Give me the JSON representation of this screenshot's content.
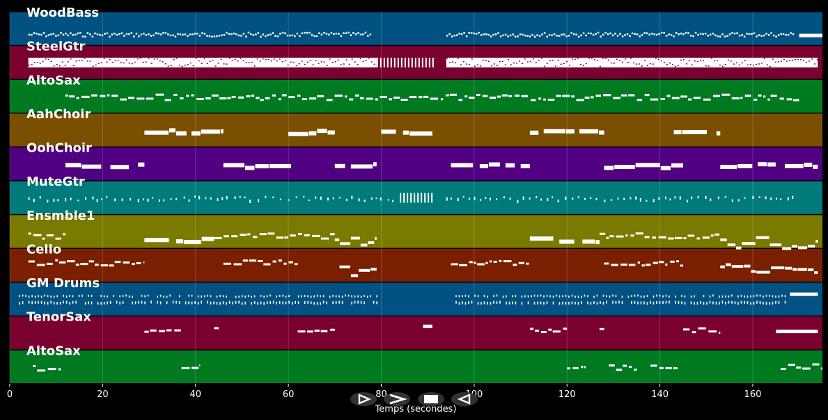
{
  "chart_data": {
    "type": "piano-roll",
    "xlabel": "Temps (secondes)",
    "xlim": [
      0,
      175
    ],
    "xticks": [
      0,
      20,
      40,
      60,
      80,
      100,
      120,
      140,
      160
    ],
    "grid": true,
    "tracks": [
      {
        "name": "WoodBass",
        "color": "#015182",
        "notes": [
          {
            "start": 4,
            "end": 78,
            "pattern": "dense-dots",
            "level": 0.35
          },
          {
            "start": 94,
            "end": 169,
            "pattern": "dense-dots",
            "level": 0.35
          },
          {
            "start": 170,
            "end": 175,
            "pattern": "bar",
            "level": 0.3
          }
        ]
      },
      {
        "name": "SteelGtr",
        "color": "#7a0030",
        "notes": [
          {
            "start": 4,
            "end": 79,
            "pattern": "thick-block",
            "level": 0.5
          },
          {
            "start": 79,
            "end": 91,
            "pattern": "vertical-stripes",
            "level": 0.5
          },
          {
            "start": 94,
            "end": 174,
            "pattern": "thick-block",
            "level": 0.5
          }
        ]
      },
      {
        "name": "AltoSax",
        "color": "#007a20",
        "notes": [
          {
            "start": 12,
            "end": 170,
            "pattern": "line-notes",
            "level": 0.5
          }
        ]
      },
      {
        "name": "AahChoir",
        "color": "#7a5000",
        "notes": [
          {
            "start": 29,
            "end": 46,
            "pattern": "blocks",
            "level": 0.5
          },
          {
            "start": 60,
            "end": 70,
            "pattern": "blocks",
            "level": 0.5
          },
          {
            "start": 80,
            "end": 91,
            "pattern": "blocks",
            "level": 0.5
          },
          {
            "start": 112,
            "end": 128,
            "pattern": "blocks",
            "level": 0.5
          },
          {
            "start": 143,
            "end": 153,
            "pattern": "blocks",
            "level": 0.5
          }
        ]
      },
      {
        "name": "OohChoir",
        "color": "#500080",
        "notes": [
          {
            "start": 12,
            "end": 29,
            "pattern": "blocks",
            "level": 0.5
          },
          {
            "start": 46,
            "end": 62,
            "pattern": "blocks",
            "level": 0.5
          },
          {
            "start": 70,
            "end": 79,
            "pattern": "blocks",
            "level": 0.5
          },
          {
            "start": 95,
            "end": 112,
            "pattern": "blocks",
            "level": 0.5
          },
          {
            "start": 128,
            "end": 145,
            "pattern": "blocks",
            "level": 0.5
          },
          {
            "start": 153,
            "end": 174,
            "pattern": "blocks",
            "level": 0.5
          }
        ]
      },
      {
        "name": "MuteGtr",
        "color": "#007a7a",
        "notes": [
          {
            "start": 4,
            "end": 84,
            "pattern": "sparse-dots",
            "level": 0.5
          },
          {
            "start": 84,
            "end": 91,
            "pattern": "vertical-stripes",
            "level": 0.5
          },
          {
            "start": 94,
            "end": 169,
            "pattern": "sparse-dots",
            "level": 0.5
          }
        ]
      },
      {
        "name": "Ensmble1",
        "color": "#7a7a00",
        "notes": [
          {
            "start": 4,
            "end": 12,
            "pattern": "line-notes",
            "level": 0.4
          },
          {
            "start": 29,
            "end": 44,
            "pattern": "blocks",
            "level": 0.3
          },
          {
            "start": 44,
            "end": 70,
            "pattern": "line-notes",
            "level": 0.4
          },
          {
            "start": 70,
            "end": 79,
            "pattern": "blocks-steps",
            "level": 0.3
          },
          {
            "start": 112,
            "end": 127,
            "pattern": "blocks",
            "level": 0.3
          },
          {
            "start": 127,
            "end": 153,
            "pattern": "line-notes",
            "level": 0.4
          },
          {
            "start": 153,
            "end": 174,
            "pattern": "blocks-steps",
            "level": 0.3
          }
        ]
      },
      {
        "name": "Cello",
        "color": "#7a2000",
        "notes": [
          {
            "start": 4,
            "end": 29,
            "pattern": "line-notes",
            "level": 0.6
          },
          {
            "start": 46,
            "end": 62,
            "pattern": "line-notes",
            "level": 0.6
          },
          {
            "start": 71,
            "end": 79,
            "pattern": "blocks-steps",
            "level": 0.5
          },
          {
            "start": 95,
            "end": 112,
            "pattern": "line-notes",
            "level": 0.6
          },
          {
            "start": 128,
            "end": 145,
            "pattern": "line-notes",
            "level": 0.6
          },
          {
            "start": 153,
            "end": 174,
            "pattern": "blocks-steps",
            "level": 0.5
          }
        ]
      },
      {
        "name": "GM Drums",
        "color": "#015182",
        "notes": [
          {
            "start": 2,
            "end": 79,
            "pattern": "drum-grid",
            "level": 0.5
          },
          {
            "start": 96,
            "end": 168,
            "pattern": "drum-grid",
            "level": 0.5
          },
          {
            "start": 168,
            "end": 174,
            "pattern": "bar",
            "level": 0.65
          }
        ]
      },
      {
        "name": "TenorSax",
        "color": "#7a0030",
        "notes": [
          {
            "start": 29,
            "end": 37,
            "pattern": "line-notes",
            "level": 0.6
          },
          {
            "start": 44,
            "end": 45,
            "pattern": "line-notes",
            "level": 0.6
          },
          {
            "start": 62,
            "end": 70,
            "pattern": "line-notes",
            "level": 0.6
          },
          {
            "start": 89,
            "end": 91,
            "pattern": "bar",
            "level": 0.7
          },
          {
            "start": 112,
            "end": 120,
            "pattern": "line-notes",
            "level": 0.6
          },
          {
            "start": 127,
            "end": 128,
            "pattern": "line-notes",
            "level": 0.6
          },
          {
            "start": 145,
            "end": 153,
            "pattern": "line-notes",
            "level": 0.6
          },
          {
            "start": 165,
            "end": 174,
            "pattern": "bar",
            "level": 0.55
          }
        ]
      },
      {
        "name": "AltoSax",
        "color": "#007a20",
        "notes": [
          {
            "start": 5,
            "end": 11,
            "pattern": "line-notes",
            "level": 0.5
          },
          {
            "start": 37,
            "end": 41,
            "pattern": "line-notes",
            "level": 0.5
          },
          {
            "start": 120,
            "end": 124,
            "pattern": "line-notes",
            "level": 0.5
          },
          {
            "start": 129,
            "end": 135,
            "pattern": "line-notes",
            "level": 0.5
          },
          {
            "start": 138,
            "end": 144,
            "pattern": "line-notes",
            "level": 0.5
          },
          {
            "start": 166,
            "end": 175,
            "pattern": "line-notes",
            "level": 0.55
          }
        ]
      }
    ]
  },
  "controls": [
    {
      "name": "play-button",
      "icon": "play-icon"
    },
    {
      "name": "forward-button",
      "icon": "forward-icon"
    },
    {
      "name": "stop-button",
      "icon": "stop-icon"
    },
    {
      "name": "rewind-button",
      "icon": "rewind-icon"
    }
  ]
}
